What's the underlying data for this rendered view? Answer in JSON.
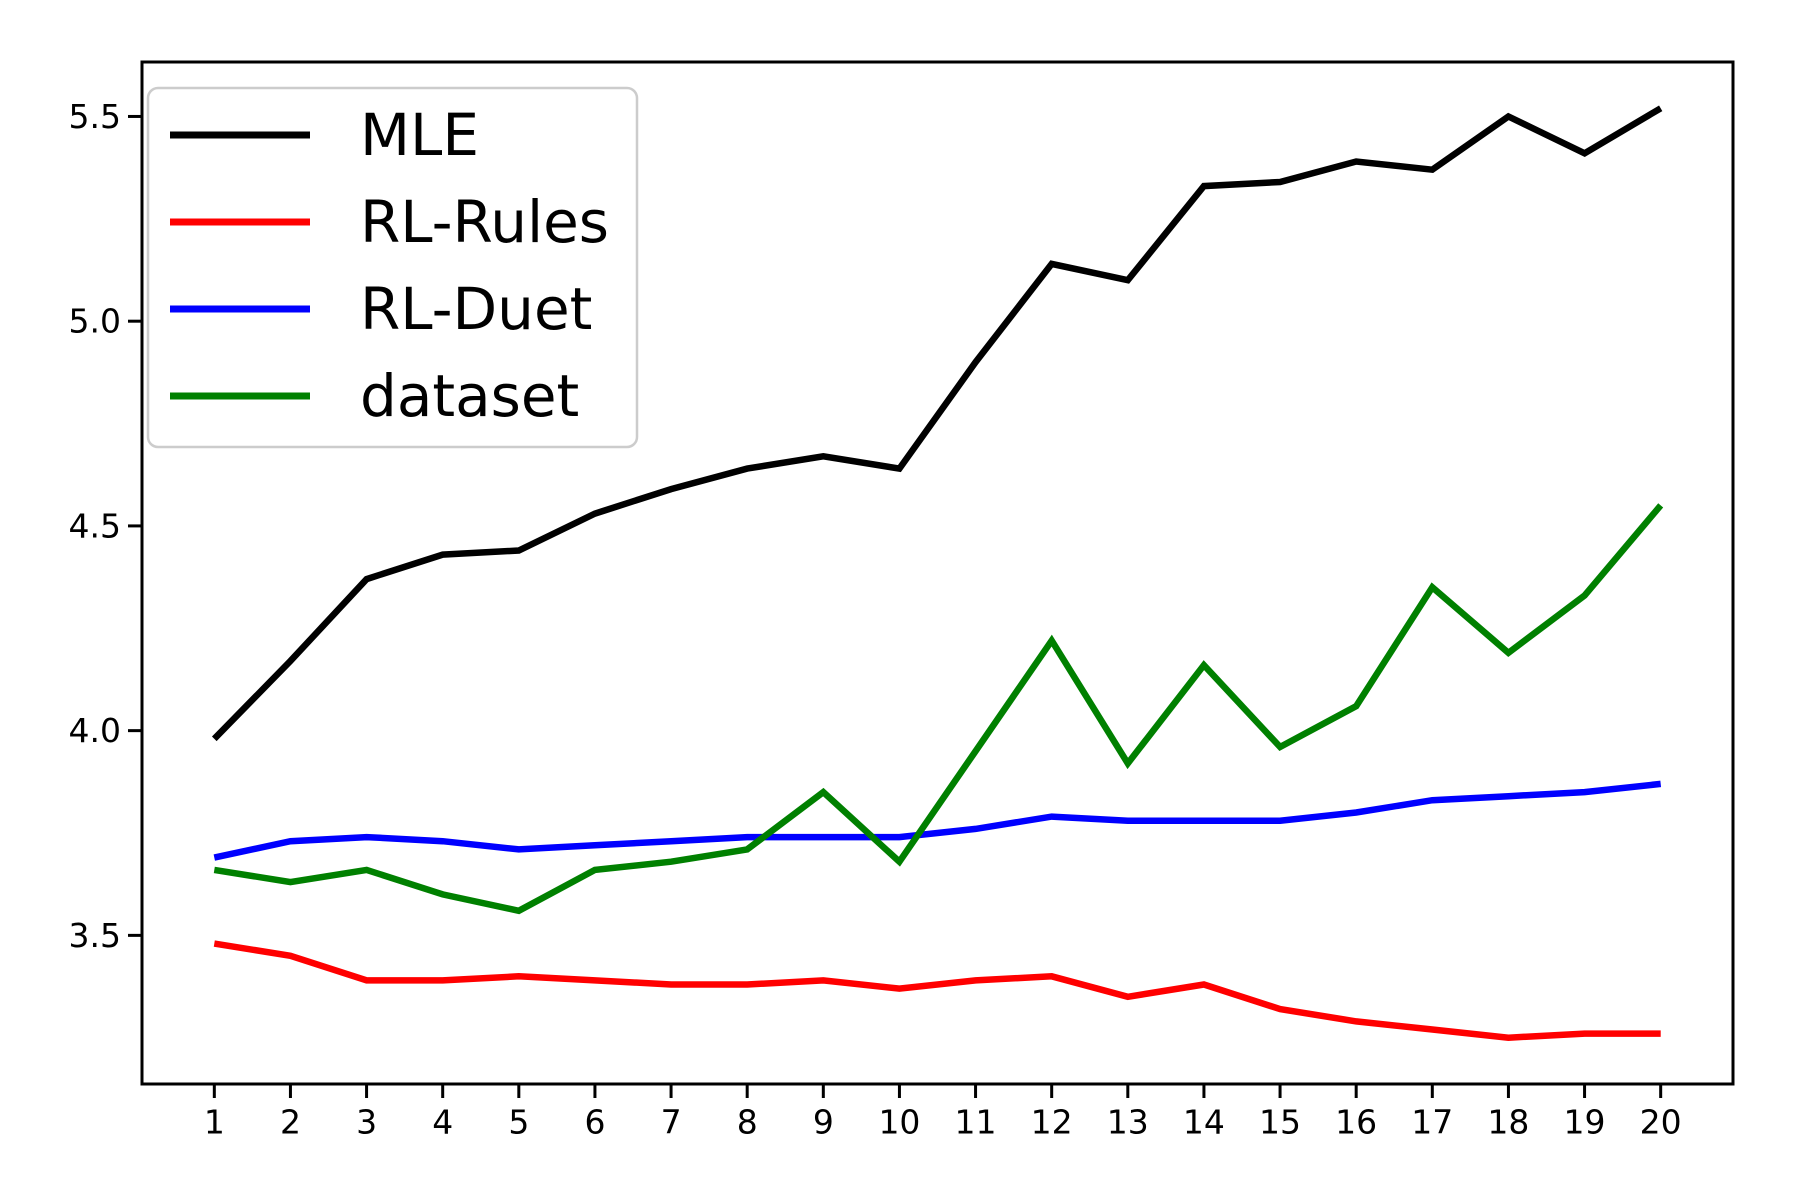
{
  "figure": {
    "background": "#ffffff"
  },
  "chart_data": {
    "type": "line",
    "title": "",
    "xlabel": "",
    "ylabel": "",
    "x": [
      1,
      2,
      3,
      4,
      5,
      6,
      7,
      8,
      9,
      10,
      11,
      12,
      13,
      14,
      15,
      16,
      17,
      18,
      19,
      20
    ],
    "series": [
      {
        "name": "MLE",
        "color": "#000000",
        "values": [
          3.98,
          4.17,
          4.37,
          4.43,
          4.44,
          4.53,
          4.59,
          4.64,
          4.67,
          4.64,
          4.9,
          5.14,
          5.1,
          5.33,
          5.34,
          5.39,
          5.37,
          5.5,
          5.41,
          5.52
        ]
      },
      {
        "name": "RL-Rules",
        "color": "#ff0000",
        "values": [
          3.48,
          3.45,
          3.39,
          3.39,
          3.4,
          3.39,
          3.38,
          3.38,
          3.39,
          3.37,
          3.39,
          3.4,
          3.35,
          3.38,
          3.32,
          3.29,
          3.27,
          3.25,
          3.26,
          3.26
        ]
      },
      {
        "name": "RL-Duet",
        "color": "#0000ff",
        "values": [
          3.69,
          3.73,
          3.74,
          3.73,
          3.71,
          3.72,
          3.73,
          3.74,
          3.74,
          3.74,
          3.76,
          3.79,
          3.78,
          3.78,
          3.78,
          3.8,
          3.83,
          3.84,
          3.85,
          3.87
        ]
      },
      {
        "name": "dataset",
        "color": "#008000",
        "values": [
          3.66,
          3.63,
          3.66,
          3.6,
          3.56,
          3.66,
          3.68,
          3.71,
          3.85,
          3.68,
          3.95,
          4.22,
          3.92,
          4.16,
          3.96,
          4.06,
          4.35,
          4.19,
          4.33,
          4.55
        ]
      }
    ],
    "x_tick_labels": [
      "1",
      "2",
      "3",
      "4",
      "5",
      "6",
      "7",
      "8",
      "9",
      "10",
      "11",
      "12",
      "13",
      "14",
      "15",
      "16",
      "17",
      "18",
      "19",
      "20"
    ],
    "y_ticks": [
      3.5,
      4.0,
      4.5,
      5.0,
      5.5
    ],
    "y_tick_labels": [
      "3.5",
      "4.0",
      "4.5",
      "5.0",
      "5.5"
    ],
    "xlim": [
      0.05,
      20.95
    ],
    "ylim": [
      3.137,
      5.633
    ],
    "grid": false,
    "legend_position": "upper left",
    "axis_color": "#000000",
    "legend_border_color": "#cccccc",
    "legend_fill": "#ffffff"
  }
}
